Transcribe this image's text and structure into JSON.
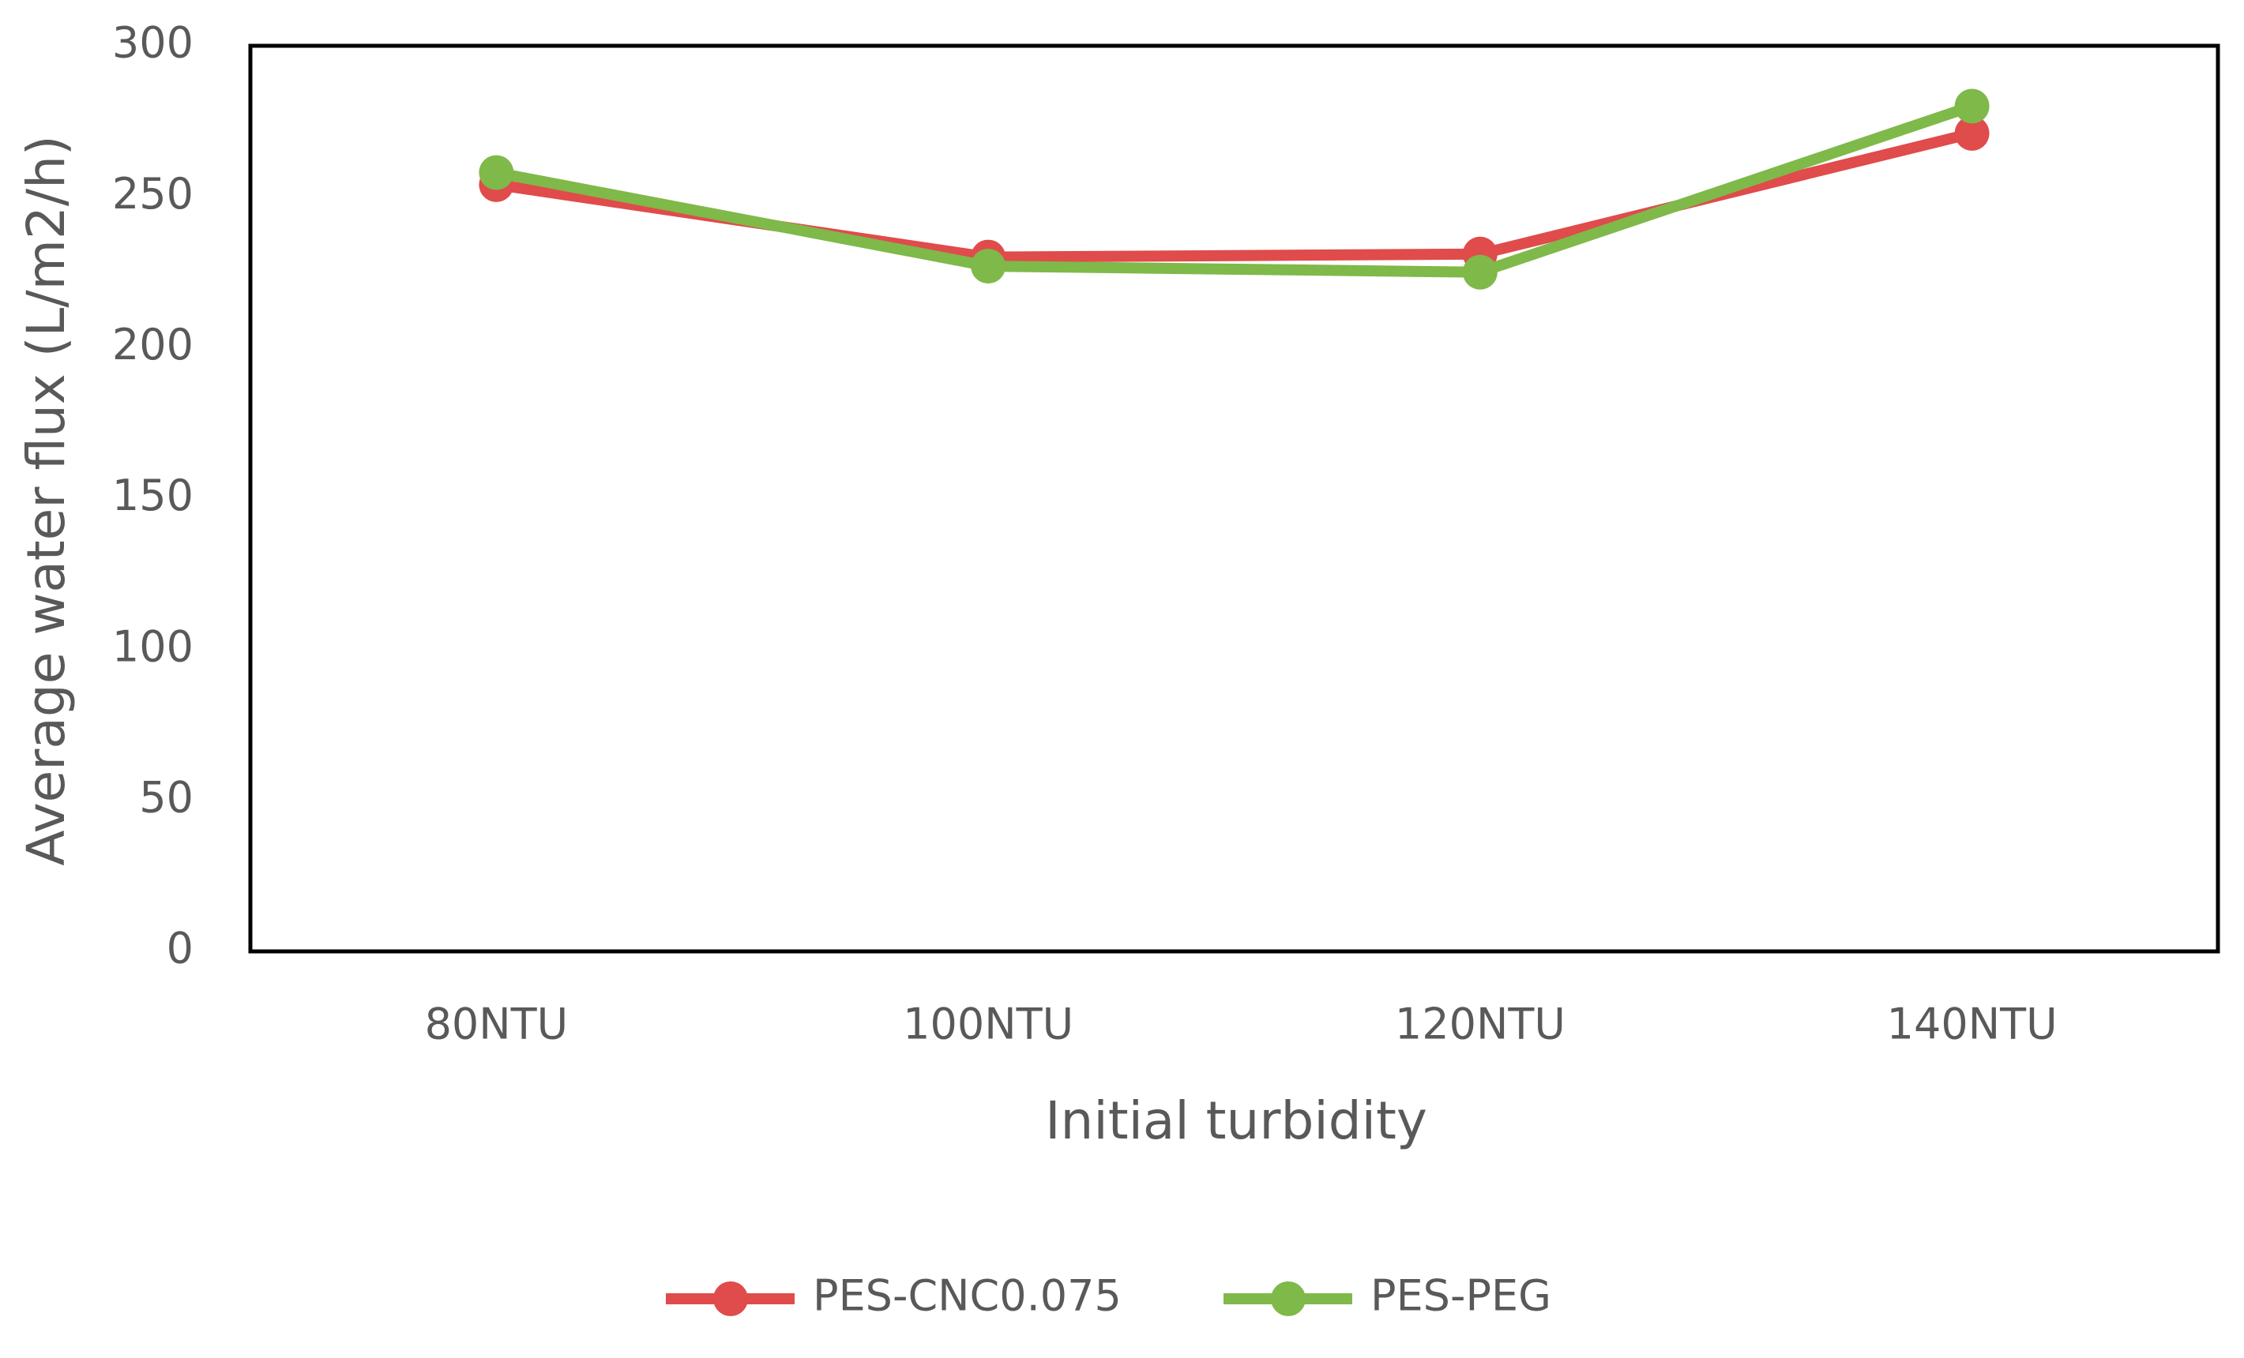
{
  "chart_data": {
    "type": "line",
    "x_label": "Initial turbidity",
    "y_label": "Average water flux (L/m2/h)",
    "categories": [
      "80NTU",
      "100NTU",
      "120NTU",
      "140NTU"
    ],
    "series": [
      {
        "name": "PES-CNC0.075",
        "color": "#e04b4b",
        "values": [
          254,
          230,
          231,
          271
        ]
      },
      {
        "name": "PES-PEG",
        "color": "#7fb949",
        "values": [
          258,
          227,
          225,
          280
        ]
      }
    ],
    "ylim": [
      0,
      300
    ],
    "yticks": [
      0,
      50,
      100,
      150,
      200,
      250,
      300
    ],
    "grid": false
  }
}
